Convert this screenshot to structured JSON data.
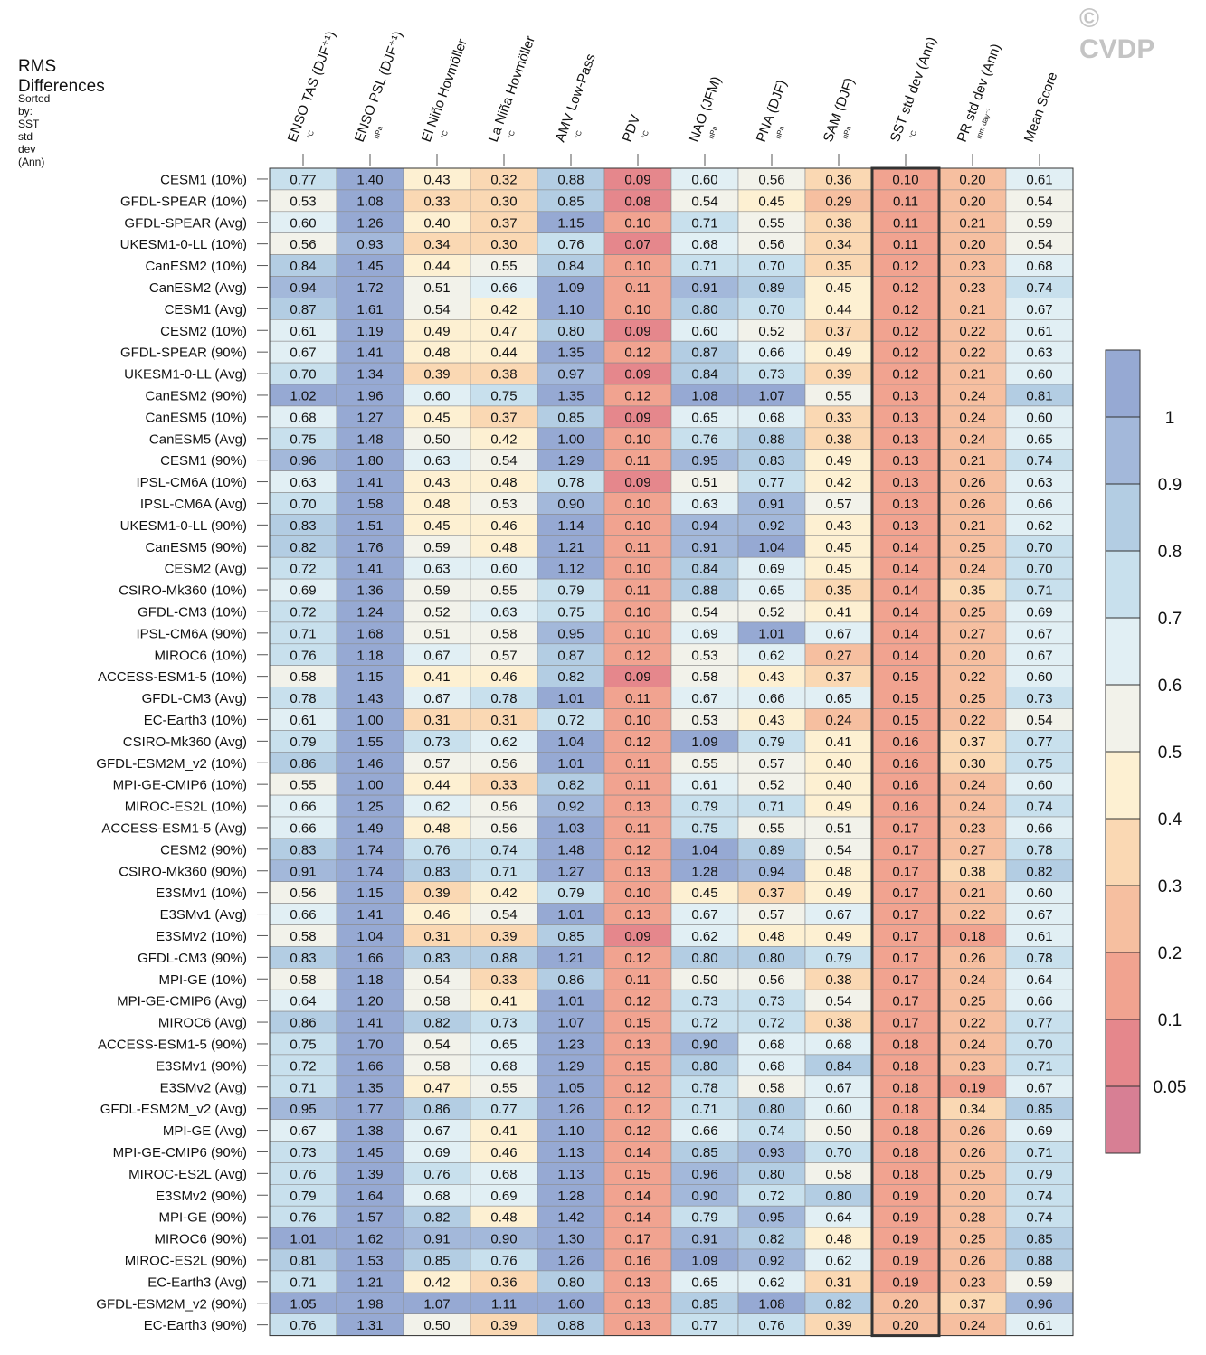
{
  "chart_data": {
    "type": "heatmap",
    "title": "RMS Differences",
    "subtitle": "Sorted by: SST std dev (Ann)",
    "watermark": "© CVDP",
    "columns": [
      {
        "name": "ENSO TAS (DJF⁺¹)",
        "unit": "°C"
      },
      {
        "name": "ENSO PSL (DJF⁺¹)",
        "unit": "hPa"
      },
      {
        "name": "El Niño Hovmöller",
        "unit": "°C"
      },
      {
        "name": "La Niña Hovmöller",
        "unit": "°C"
      },
      {
        "name": "AMV Low-Pass",
        "unit": "°C"
      },
      {
        "name": "PDV",
        "unit": "°C"
      },
      {
        "name": "NAO (JFM)",
        "unit": "hPa"
      },
      {
        "name": "PNA (DJF)",
        "unit": "hPa"
      },
      {
        "name": "SAM (DJF)",
        "unit": "hPa"
      },
      {
        "name": "SST std dev (Ann)",
        "unit": "°C"
      },
      {
        "name": "PR std dev (Ann)",
        "unit": "mm day⁻¹"
      },
      {
        "name": "Mean Score",
        "unit": ""
      }
    ],
    "highlighted_column": "SST std dev (Ann)",
    "rows": [
      {
        "label": "CESM1 (10%)",
        "values": [
          0.77,
          1.4,
          0.43,
          0.32,
          0.88,
          0.09,
          0.6,
          0.56,
          0.36,
          0.1,
          0.2,
          0.61
        ]
      },
      {
        "label": "GFDL-SPEAR (10%)",
        "values": [
          0.53,
          1.08,
          0.33,
          0.3,
          0.85,
          0.08,
          0.54,
          0.45,
          0.29,
          0.11,
          0.2,
          0.54
        ]
      },
      {
        "label": "GFDL-SPEAR (Avg)",
        "values": [
          0.6,
          1.26,
          0.4,
          0.37,
          1.15,
          0.1,
          0.71,
          0.55,
          0.38,
          0.11,
          0.21,
          0.59
        ]
      },
      {
        "label": "UKESM1-0-LL (10%)",
        "values": [
          0.56,
          0.93,
          0.34,
          0.3,
          0.76,
          0.07,
          0.68,
          0.56,
          0.34,
          0.11,
          0.2,
          0.54
        ]
      },
      {
        "label": "CanESM2 (10%)",
        "values": [
          0.84,
          1.45,
          0.44,
          0.55,
          0.84,
          0.1,
          0.71,
          0.7,
          0.35,
          0.12,
          0.23,
          0.68
        ]
      },
      {
        "label": "CanESM2 (Avg)",
        "values": [
          0.94,
          1.72,
          0.51,
          0.66,
          1.09,
          0.11,
          0.91,
          0.89,
          0.45,
          0.12,
          0.23,
          0.74
        ]
      },
      {
        "label": "CESM1 (Avg)",
        "values": [
          0.87,
          1.61,
          0.54,
          0.42,
          1.1,
          0.1,
          0.8,
          0.7,
          0.44,
          0.12,
          0.21,
          0.67
        ]
      },
      {
        "label": "CESM2 (10%)",
        "values": [
          0.61,
          1.19,
          0.49,
          0.47,
          0.8,
          0.09,
          0.6,
          0.52,
          0.37,
          0.12,
          0.22,
          0.61
        ]
      },
      {
        "label": "GFDL-SPEAR (90%)",
        "values": [
          0.67,
          1.41,
          0.48,
          0.44,
          1.35,
          0.12,
          0.87,
          0.66,
          0.49,
          0.12,
          0.22,
          0.63
        ]
      },
      {
        "label": "UKESM1-0-LL (Avg)",
        "values": [
          0.7,
          1.34,
          0.39,
          0.38,
          0.97,
          0.09,
          0.84,
          0.73,
          0.39,
          0.12,
          0.21,
          0.6
        ]
      },
      {
        "label": "CanESM2 (90%)",
        "values": [
          1.02,
          1.96,
          0.6,
          0.75,
          1.35,
          0.12,
          1.08,
          1.07,
          0.55,
          0.13,
          0.24,
          0.81
        ]
      },
      {
        "label": "CanESM5 (10%)",
        "values": [
          0.68,
          1.27,
          0.45,
          0.37,
          0.85,
          0.09,
          0.65,
          0.68,
          0.33,
          0.13,
          0.24,
          0.6
        ]
      },
      {
        "label": "CanESM5 (Avg)",
        "values": [
          0.75,
          1.48,
          0.5,
          0.42,
          1.0,
          0.1,
          0.76,
          0.88,
          0.38,
          0.13,
          0.24,
          0.65
        ]
      },
      {
        "label": "CESM1 (90%)",
        "values": [
          0.96,
          1.8,
          0.63,
          0.54,
          1.29,
          0.11,
          0.95,
          0.83,
          0.49,
          0.13,
          0.21,
          0.74
        ]
      },
      {
        "label": "IPSL-CM6A (10%)",
        "values": [
          0.63,
          1.41,
          0.43,
          0.48,
          0.78,
          0.09,
          0.51,
          0.77,
          0.42,
          0.13,
          0.26,
          0.63
        ]
      },
      {
        "label": "IPSL-CM6A (Avg)",
        "values": [
          0.7,
          1.58,
          0.48,
          0.53,
          0.9,
          0.1,
          0.63,
          0.91,
          0.57,
          0.13,
          0.26,
          0.66
        ]
      },
      {
        "label": "UKESM1-0-LL (90%)",
        "values": [
          0.83,
          1.51,
          0.45,
          0.46,
          1.14,
          0.1,
          0.94,
          0.92,
          0.43,
          0.13,
          0.21,
          0.62
        ]
      },
      {
        "label": "CanESM5 (90%)",
        "values": [
          0.82,
          1.76,
          0.59,
          0.48,
          1.21,
          0.11,
          0.91,
          1.04,
          0.45,
          0.14,
          0.25,
          0.7
        ]
      },
      {
        "label": "CESM2 (Avg)",
        "values": [
          0.72,
          1.41,
          0.63,
          0.6,
          1.12,
          0.1,
          0.84,
          0.69,
          0.45,
          0.14,
          0.24,
          0.7
        ]
      },
      {
        "label": "CSIRO-Mk360 (10%)",
        "values": [
          0.69,
          1.36,
          0.59,
          0.55,
          0.79,
          0.11,
          0.88,
          0.65,
          0.35,
          0.14,
          0.35,
          0.71
        ]
      },
      {
        "label": "GFDL-CM3 (10%)",
        "values": [
          0.72,
          1.24,
          0.52,
          0.63,
          0.75,
          0.1,
          0.54,
          0.52,
          0.41,
          0.14,
          0.25,
          0.69
        ]
      },
      {
        "label": "IPSL-CM6A (90%)",
        "values": [
          0.71,
          1.68,
          0.51,
          0.58,
          0.95,
          0.1,
          0.69,
          1.01,
          0.67,
          0.14,
          0.27,
          0.67
        ]
      },
      {
        "label": "MIROC6 (10%)",
        "values": [
          0.76,
          1.18,
          0.67,
          0.57,
          0.87,
          0.12,
          0.53,
          0.62,
          0.27,
          0.14,
          0.2,
          0.67
        ]
      },
      {
        "label": "ACCESS-ESM1-5 (10%)",
        "values": [
          0.58,
          1.15,
          0.41,
          0.46,
          0.82,
          0.09,
          0.58,
          0.43,
          0.37,
          0.15,
          0.22,
          0.6
        ]
      },
      {
        "label": "GFDL-CM3 (Avg)",
        "values": [
          0.78,
          1.43,
          0.67,
          0.78,
          1.01,
          0.11,
          0.67,
          0.66,
          0.65,
          0.15,
          0.25,
          0.73
        ]
      },
      {
        "label": "EC-Earth3 (10%)",
        "values": [
          0.61,
          1.0,
          0.31,
          0.31,
          0.72,
          0.1,
          0.53,
          0.43,
          0.24,
          0.15,
          0.22,
          0.54
        ]
      },
      {
        "label": "CSIRO-Mk360 (Avg)",
        "values": [
          0.79,
          1.55,
          0.73,
          0.62,
          1.04,
          0.12,
          1.09,
          0.79,
          0.41,
          0.16,
          0.37,
          0.77
        ]
      },
      {
        "label": "GFDL-ESM2M_v2 (10%)",
        "values": [
          0.86,
          1.46,
          0.57,
          0.56,
          1.01,
          0.11,
          0.55,
          0.57,
          0.4,
          0.16,
          0.3,
          0.75
        ]
      },
      {
        "label": "MPI-GE-CMIP6 (10%)",
        "values": [
          0.55,
          1.0,
          0.44,
          0.33,
          0.82,
          0.11,
          0.61,
          0.52,
          0.4,
          0.16,
          0.24,
          0.6
        ]
      },
      {
        "label": "MIROC-ES2L (10%)",
        "values": [
          0.66,
          1.25,
          0.62,
          0.56,
          0.92,
          0.13,
          0.79,
          0.71,
          0.49,
          0.16,
          0.24,
          0.74
        ]
      },
      {
        "label": "ACCESS-ESM1-5 (Avg)",
        "values": [
          0.66,
          1.49,
          0.48,
          0.56,
          1.03,
          0.11,
          0.75,
          0.55,
          0.51,
          0.17,
          0.23,
          0.66
        ]
      },
      {
        "label": "CESM2 (90%)",
        "values": [
          0.83,
          1.74,
          0.76,
          0.74,
          1.48,
          0.12,
          1.04,
          0.89,
          0.54,
          0.17,
          0.27,
          0.78
        ]
      },
      {
        "label": "CSIRO-Mk360 (90%)",
        "values": [
          0.91,
          1.74,
          0.83,
          0.71,
          1.27,
          0.13,
          1.28,
          0.94,
          0.48,
          0.17,
          0.38,
          0.82
        ]
      },
      {
        "label": "E3SMv1 (10%)",
        "values": [
          0.56,
          1.15,
          0.39,
          0.42,
          0.79,
          0.1,
          0.45,
          0.37,
          0.49,
          0.17,
          0.21,
          0.6
        ]
      },
      {
        "label": "E3SMv1 (Avg)",
        "values": [
          0.66,
          1.41,
          0.46,
          0.54,
          1.01,
          0.13,
          0.67,
          0.57,
          0.67,
          0.17,
          0.22,
          0.67
        ]
      },
      {
        "label": "E3SMv2 (10%)",
        "values": [
          0.58,
          1.04,
          0.31,
          0.39,
          0.85,
          0.09,
          0.62,
          0.48,
          0.49,
          0.17,
          0.18,
          0.61
        ]
      },
      {
        "label": "GFDL-CM3 (90%)",
        "values": [
          0.83,
          1.66,
          0.83,
          0.88,
          1.21,
          0.12,
          0.8,
          0.8,
          0.79,
          0.17,
          0.26,
          0.78
        ]
      },
      {
        "label": "MPI-GE (10%)",
        "values": [
          0.58,
          1.18,
          0.54,
          0.33,
          0.86,
          0.11,
          0.5,
          0.56,
          0.38,
          0.17,
          0.24,
          0.64
        ]
      },
      {
        "label": "MPI-GE-CMIP6 (Avg)",
        "values": [
          0.64,
          1.2,
          0.58,
          0.41,
          1.01,
          0.12,
          0.73,
          0.73,
          0.54,
          0.17,
          0.25,
          0.66
        ]
      },
      {
        "label": "MIROC6 (Avg)",
        "values": [
          0.86,
          1.41,
          0.82,
          0.73,
          1.07,
          0.15,
          0.72,
          0.72,
          0.38,
          0.17,
          0.22,
          0.77
        ]
      },
      {
        "label": "ACCESS-ESM1-5 (90%)",
        "values": [
          0.75,
          1.7,
          0.54,
          0.65,
          1.23,
          0.13,
          0.9,
          0.68,
          0.68,
          0.18,
          0.24,
          0.7
        ]
      },
      {
        "label": "E3SMv1 (90%)",
        "values": [
          0.72,
          1.66,
          0.58,
          0.68,
          1.29,
          0.15,
          0.8,
          0.68,
          0.84,
          0.18,
          0.23,
          0.71
        ]
      },
      {
        "label": "E3SMv2 (Avg)",
        "values": [
          0.71,
          1.35,
          0.47,
          0.55,
          1.05,
          0.12,
          0.78,
          0.58,
          0.67,
          0.18,
          0.19,
          0.67
        ]
      },
      {
        "label": "GFDL-ESM2M_v2 (Avg)",
        "values": [
          0.95,
          1.77,
          0.86,
          0.77,
          1.26,
          0.12,
          0.71,
          0.8,
          0.6,
          0.18,
          0.34,
          0.85
        ]
      },
      {
        "label": "MPI-GE (Avg)",
        "values": [
          0.67,
          1.38,
          0.67,
          0.41,
          1.1,
          0.12,
          0.66,
          0.74,
          0.5,
          0.18,
          0.26,
          0.69
        ]
      },
      {
        "label": "MPI-GE-CMIP6 (90%)",
        "values": [
          0.73,
          1.45,
          0.69,
          0.46,
          1.13,
          0.14,
          0.85,
          0.93,
          0.7,
          0.18,
          0.26,
          0.71
        ]
      },
      {
        "label": "MIROC-ES2L (Avg)",
        "values": [
          0.76,
          1.39,
          0.76,
          0.68,
          1.13,
          0.15,
          0.96,
          0.8,
          0.58,
          0.18,
          0.25,
          0.79
        ]
      },
      {
        "label": "E3SMv2 (90%)",
        "values": [
          0.79,
          1.64,
          0.68,
          0.69,
          1.28,
          0.14,
          0.9,
          0.72,
          0.8,
          0.19,
          0.2,
          0.74
        ]
      },
      {
        "label": "MPI-GE (90%)",
        "values": [
          0.76,
          1.57,
          0.82,
          0.48,
          1.42,
          0.14,
          0.79,
          0.95,
          0.64,
          0.19,
          0.28,
          0.74
        ]
      },
      {
        "label": "MIROC6 (90%)",
        "values": [
          1.01,
          1.62,
          0.91,
          0.9,
          1.3,
          0.17,
          0.91,
          0.82,
          0.48,
          0.19,
          0.25,
          0.85
        ]
      },
      {
        "label": "MIROC-ES2L (90%)",
        "values": [
          0.81,
          1.53,
          0.85,
          0.76,
          1.26,
          0.16,
          1.09,
          0.92,
          0.62,
          0.19,
          0.26,
          0.88
        ]
      },
      {
        "label": "EC-Earth3 (Avg)",
        "values": [
          0.71,
          1.21,
          0.42,
          0.36,
          0.8,
          0.13,
          0.65,
          0.62,
          0.31,
          0.19,
          0.23,
          0.59
        ]
      },
      {
        "label": "GFDL-ESM2M_v2 (90%)",
        "values": [
          1.05,
          1.98,
          1.07,
          1.11,
          1.6,
          0.13,
          0.85,
          1.08,
          0.82,
          0.2,
          0.37,
          0.96
        ]
      },
      {
        "label": "EC-Earth3 (90%)",
        "values": [
          0.76,
          1.31,
          0.5,
          0.39,
          0.88,
          0.13,
          0.77,
          0.76,
          0.39,
          0.2,
          0.24,
          0.61
        ]
      }
    ],
    "colorbar": {
      "levels": [
        0.05,
        0.1,
        0.2,
        0.3,
        0.4,
        0.5,
        0.6,
        0.7,
        0.8,
        0.9,
        1
      ],
      "tick_labels": [
        "0.05",
        "0.1",
        "0.2",
        "0.3",
        "0.4",
        "0.5",
        "0.6",
        "0.7",
        "0.8",
        "0.9",
        "1"
      ],
      "colors": [
        "#d77f94",
        "#e5878c",
        "#f1a390",
        "#f6bfa0",
        "#fad8b3",
        "#fdf0d2",
        "#f2f2ea",
        "#e1eff4",
        "#c8e0ed",
        "#b3cde3",
        "#a3b8da",
        "#96a9d3"
      ]
    }
  }
}
